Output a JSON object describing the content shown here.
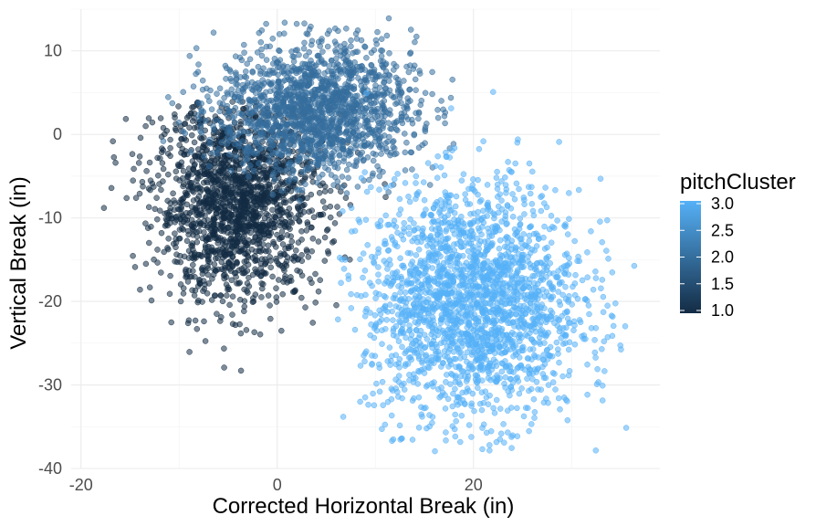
{
  "chart_data": {
    "type": "scatter",
    "title": "",
    "xlabel": "Corrected Horizontal Break (in)",
    "ylabel": "Vertical Break (in)",
    "xlim": [
      -21,
      39
    ],
    "ylim": [
      -40,
      15
    ],
    "x_ticks": [
      -20,
      0,
      20
    ],
    "x_tick_labels": [
      "-20",
      "0",
      "20"
    ],
    "y_ticks": [
      10,
      0,
      -10,
      -20,
      -30,
      -40
    ],
    "y_tick_labels": [
      "10",
      "0",
      "-10",
      "-20",
      "-30",
      "-40"
    ],
    "grid": true,
    "point_opacity": 0.55,
    "color_scale": {
      "name": "pitchCluster",
      "low_color": "#132b43",
      "high_color": "#56b1f7",
      "range": [
        1.0,
        3.0
      ],
      "breaks": [
        3.0,
        2.5,
        2.0,
        1.5,
        1.0
      ],
      "break_labels": [
        "3.0",
        "2.5",
        "2.0",
        "1.5",
        "1.0"
      ]
    },
    "clusters": [
      {
        "value": 1.0,
        "center": [
          -4,
          -8
        ],
        "spread": [
          4.2,
          6
        ],
        "x_range": [
          -18,
          14
        ],
        "y_range": [
          -30,
          4
        ],
        "points": 1800
      },
      {
        "value": 2.0,
        "center": [
          4,
          3
        ],
        "spread": [
          5,
          4
        ],
        "x_range": [
          -12,
          18
        ],
        "y_range": [
          -8,
          14
        ],
        "points": 1600
      },
      {
        "value": 3.0,
        "center": [
          20,
          -20
        ],
        "spread": [
          5.5,
          7
        ],
        "x_range": [
          6,
          37
        ],
        "y_range": [
          -38,
          6
        ],
        "points": 2200
      }
    ]
  },
  "legend": {
    "title": "pitchCluster",
    "labels": [
      "3.0",
      "2.5",
      "2.0",
      "1.5",
      "1.0"
    ]
  }
}
